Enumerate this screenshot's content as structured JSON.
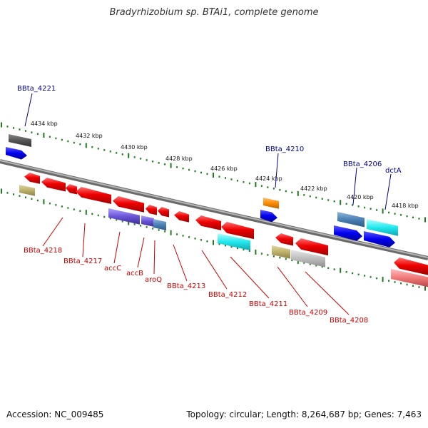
{
  "title": "Bradyrhizobium sp. BTAi1, complete genome",
  "footer": {
    "accession": "Accession: NC_009485",
    "topology": "Topology: circular; Length: 8,264,687 bp; Genes: 7,463"
  },
  "scale_ticks": [
    "4434 kbp",
    "4432 kbp",
    "4430 kbp",
    "4428 kbp",
    "4426 kbp",
    "4424 kbp",
    "4422 kbp",
    "4420 kbp",
    "4418 kbp"
  ],
  "upper_labels": [
    "BBta_4221",
    "BBta_4210",
    "BBta_4206",
    "dctA"
  ],
  "lower_labels": [
    "BBta_4218",
    "BBta_4217",
    "accC",
    "accB",
    "aroQ",
    "BBta_4213",
    "BBta_4212",
    "BBta_4211",
    "BBta_4209",
    "BBta_4208"
  ],
  "colors": {
    "forward_label": "#00008b",
    "reverse_label": "#cc0000",
    "backbone": "#8a8a8a",
    "ticks": "#1f7a1f"
  }
}
